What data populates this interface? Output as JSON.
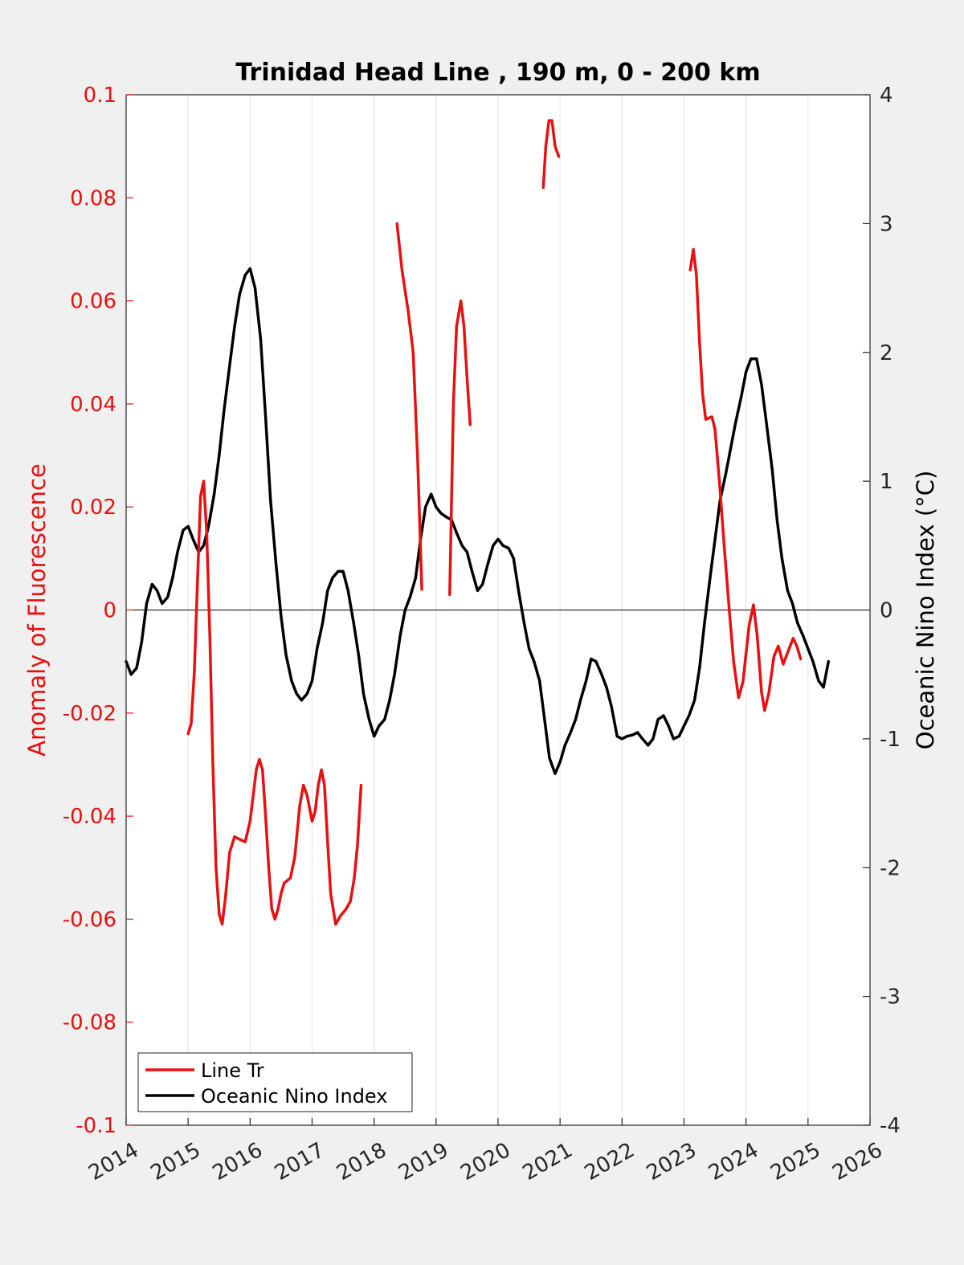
{
  "chart_data": {
    "type": "line",
    "title": "Trinidad Head Line , 190 m, 0 - 200 km",
    "xlabel": "",
    "ylabel_left": "Anomaly of Fluorescence",
    "ylabel_right": "Oceanic Nino Index (°C)",
    "xlim": [
      2014,
      2026
    ],
    "ylim_left": [
      -0.1,
      0.1
    ],
    "ylim_right": [
      -4,
      4
    ],
    "x_ticks": [
      "2014",
      "2015",
      "2016",
      "2017",
      "2018",
      "2019",
      "2020",
      "2021",
      "2022",
      "2023",
      "2024",
      "2025",
      "2026"
    ],
    "y_ticks_left": [
      "0.1",
      "0.08",
      "0.06",
      "0.04",
      "0.02",
      "0",
      "-0.02",
      "-0.04",
      "-0.06",
      "-0.08",
      "-0.1"
    ],
    "y_ticks_right": [
      "4",
      "3",
      "2",
      "1",
      "0",
      "-1",
      "-2",
      "-3",
      "-4"
    ],
    "grid": "vertical",
    "legend_position": "bottom-left",
    "colors": {
      "line_tr": "#e81010",
      "oni": "#000000",
      "left_axis": "#e81010",
      "right_axis": "#000000"
    },
    "series": [
      {
        "name": "Line Tr",
        "axis": "left",
        "segments": [
          [
            [
              2015.0,
              -0.024
            ],
            [
              2015.05,
              -0.022
            ],
            [
              2015.1,
              -0.012
            ],
            [
              2015.15,
              0.005
            ],
            [
              2015.2,
              0.022
            ],
            [
              2015.25,
              0.025
            ],
            [
              2015.3,
              0.015
            ],
            [
              2015.35,
              -0.005
            ],
            [
              2015.4,
              -0.03
            ],
            [
              2015.45,
              -0.05
            ],
            [
              2015.5,
              -0.059
            ],
            [
              2015.55,
              -0.061
            ],
            [
              2015.6,
              -0.056
            ],
            [
              2015.67,
              -0.047
            ],
            [
              2015.75,
              -0.044
            ],
            [
              2015.83,
              -0.0445
            ],
            [
              2015.92,
              -0.045
            ],
            [
              2016.0,
              -0.041
            ],
            [
              2016.05,
              -0.036
            ],
            [
              2016.1,
              -0.031
            ],
            [
              2016.15,
              -0.029
            ],
            [
              2016.2,
              -0.031
            ],
            [
              2016.25,
              -0.04
            ],
            [
              2016.3,
              -0.05
            ],
            [
              2016.35,
              -0.058
            ],
            [
              2016.4,
              -0.06
            ],
            [
              2016.45,
              -0.058
            ],
            [
              2016.5,
              -0.055
            ],
            [
              2016.55,
              -0.053
            ],
            [
              2016.65,
              -0.052
            ],
            [
              2016.72,
              -0.048
            ],
            [
              2016.8,
              -0.038
            ],
            [
              2016.86,
              -0.034
            ],
            [
              2016.92,
              -0.036
            ],
            [
              2017.0,
              -0.041
            ],
            [
              2017.05,
              -0.039
            ],
            [
              2017.1,
              -0.034
            ],
            [
              2017.15,
              -0.031
            ],
            [
              2017.2,
              -0.034
            ],
            [
              2017.25,
              -0.045
            ],
            [
              2017.3,
              -0.055
            ],
            [
              2017.38,
              -0.061
            ],
            [
              2017.45,
              -0.0595
            ],
            [
              2017.55,
              -0.058
            ],
            [
              2017.62,
              -0.0565
            ],
            [
              2017.68,
              -0.052
            ],
            [
              2017.73,
              -0.046
            ],
            [
              2017.79,
              -0.034
            ]
          ],
          [
            [
              2018.37,
              0.075
            ],
            [
              2018.45,
              0.066
            ],
            [
              2018.55,
              0.058
            ],
            [
              2018.63,
              0.05
            ],
            [
              2018.7,
              0.03
            ],
            [
              2018.75,
              0.012
            ],
            [
              2018.77,
              0.004
            ]
          ],
          [
            [
              2019.22,
              0.003
            ],
            [
              2019.28,
              0.04
            ],
            [
              2019.33,
              0.055
            ],
            [
              2019.4,
              0.06
            ],
            [
              2019.45,
              0.055
            ],
            [
              2019.5,
              0.045
            ],
            [
              2019.55,
              0.036
            ]
          ],
          [
            [
              2020.73,
              0.082
            ],
            [
              2020.77,
              0.09
            ],
            [
              2020.82,
              0.095
            ],
            [
              2020.87,
              0.095
            ],
            [
              2020.92,
              0.09
            ],
            [
              2020.98,
              0.088
            ]
          ],
          [
            [
              2023.1,
              0.066
            ],
            [
              2023.15,
              0.07
            ],
            [
              2023.2,
              0.065
            ],
            [
              2023.25,
              0.052
            ],
            [
              2023.3,
              0.042
            ],
            [
              2023.35,
              0.037
            ],
            [
              2023.45,
              0.0375
            ],
            [
              2023.5,
              0.035
            ],
            [
              2023.57,
              0.025
            ],
            [
              2023.65,
              0.012
            ],
            [
              2023.73,
              0.0
            ],
            [
              2023.8,
              -0.01
            ],
            [
              2023.88,
              -0.017
            ],
            [
              2023.95,
              -0.014
            ],
            [
              2024.05,
              -0.003
            ],
            [
              2024.12,
              0.001
            ],
            [
              2024.18,
              -0.005
            ],
            [
              2024.25,
              -0.016
            ],
            [
              2024.3,
              -0.0195
            ],
            [
              2024.37,
              -0.016
            ],
            [
              2024.45,
              -0.009
            ],
            [
              2024.52,
              -0.007
            ],
            [
              2024.6,
              -0.0105
            ],
            [
              2024.68,
              -0.008
            ],
            [
              2024.76,
              -0.0055
            ],
            [
              2024.82,
              -0.007
            ],
            [
              2024.88,
              -0.0095
            ]
          ]
        ]
      },
      {
        "name": "Oceanic Nino Index",
        "axis": "right",
        "values": [
          [
            2014.0,
            -0.4
          ],
          [
            2014.08,
            -0.5
          ],
          [
            2014.17,
            -0.45
          ],
          [
            2014.25,
            -0.25
          ],
          [
            2014.33,
            0.05
          ],
          [
            2014.42,
            0.2
          ],
          [
            2014.5,
            0.15
          ],
          [
            2014.58,
            0.05
          ],
          [
            2014.67,
            0.1
          ],
          [
            2014.75,
            0.25
          ],
          [
            2014.83,
            0.45
          ],
          [
            2014.92,
            0.62
          ],
          [
            2015.0,
            0.65
          ],
          [
            2015.08,
            0.55
          ],
          [
            2015.17,
            0.45
          ],
          [
            2015.25,
            0.5
          ],
          [
            2015.33,
            0.65
          ],
          [
            2015.42,
            0.9
          ],
          [
            2015.5,
            1.2
          ],
          [
            2015.58,
            1.55
          ],
          [
            2015.67,
            1.9
          ],
          [
            2015.75,
            2.2
          ],
          [
            2015.83,
            2.45
          ],
          [
            2015.92,
            2.6
          ],
          [
            2016.0,
            2.65
          ],
          [
            2016.08,
            2.5
          ],
          [
            2016.17,
            2.1
          ],
          [
            2016.25,
            1.5
          ],
          [
            2016.33,
            0.85
          ],
          [
            2016.42,
            0.35
          ],
          [
            2016.5,
            -0.05
          ],
          [
            2016.58,
            -0.35
          ],
          [
            2016.67,
            -0.55
          ],
          [
            2016.75,
            -0.65
          ],
          [
            2016.83,
            -0.7
          ],
          [
            2016.92,
            -0.65
          ],
          [
            2017.0,
            -0.55
          ],
          [
            2017.08,
            -0.3
          ],
          [
            2017.17,
            -0.1
          ],
          [
            2017.25,
            0.15
          ],
          [
            2017.33,
            0.25
          ],
          [
            2017.42,
            0.3
          ],
          [
            2017.5,
            0.3
          ],
          [
            2017.58,
            0.15
          ],
          [
            2017.67,
            -0.1
          ],
          [
            2017.75,
            -0.35
          ],
          [
            2017.83,
            -0.65
          ],
          [
            2017.92,
            -0.85
          ],
          [
            2018.0,
            -0.98
          ],
          [
            2018.08,
            -0.9
          ],
          [
            2018.17,
            -0.85
          ],
          [
            2018.25,
            -0.7
          ],
          [
            2018.33,
            -0.5
          ],
          [
            2018.42,
            -0.2
          ],
          [
            2018.5,
            0.0
          ],
          [
            2018.58,
            0.1
          ],
          [
            2018.67,
            0.25
          ],
          [
            2018.75,
            0.55
          ],
          [
            2018.83,
            0.8
          ],
          [
            2018.92,
            0.9
          ],
          [
            2019.0,
            0.8
          ],
          [
            2019.08,
            0.75
          ],
          [
            2019.17,
            0.72
          ],
          [
            2019.25,
            0.7
          ],
          [
            2019.33,
            0.6
          ],
          [
            2019.42,
            0.5
          ],
          [
            2019.5,
            0.45
          ],
          [
            2019.58,
            0.3
          ],
          [
            2019.67,
            0.15
          ],
          [
            2019.75,
            0.2
          ],
          [
            2019.83,
            0.35
          ],
          [
            2019.92,
            0.5
          ],
          [
            2020.0,
            0.55
          ],
          [
            2020.08,
            0.5
          ],
          [
            2020.17,
            0.48
          ],
          [
            2020.25,
            0.4
          ],
          [
            2020.33,
            0.15
          ],
          [
            2020.42,
            -0.1
          ],
          [
            2020.5,
            -0.3
          ],
          [
            2020.58,
            -0.4
          ],
          [
            2020.67,
            -0.55
          ],
          [
            2020.75,
            -0.85
          ],
          [
            2020.83,
            -1.15
          ],
          [
            2020.92,
            -1.27
          ],
          [
            2021.0,
            -1.18
          ],
          [
            2021.08,
            -1.05
          ],
          [
            2021.17,
            -0.95
          ],
          [
            2021.25,
            -0.85
          ],
          [
            2021.33,
            -0.7
          ],
          [
            2021.42,
            -0.55
          ],
          [
            2021.5,
            -0.38
          ],
          [
            2021.58,
            -0.4
          ],
          [
            2021.67,
            -0.5
          ],
          [
            2021.75,
            -0.6
          ],
          [
            2021.83,
            -0.75
          ],
          [
            2021.92,
            -0.98
          ],
          [
            2022.0,
            -1.0
          ],
          [
            2022.08,
            -0.98
          ],
          [
            2022.17,
            -0.97
          ],
          [
            2022.25,
            -0.95
          ],
          [
            2022.33,
            -1.0
          ],
          [
            2022.42,
            -1.05
          ],
          [
            2022.5,
            -1.0
          ],
          [
            2022.58,
            -0.85
          ],
          [
            2022.67,
            -0.82
          ],
          [
            2022.75,
            -0.9
          ],
          [
            2022.83,
            -1.0
          ],
          [
            2022.92,
            -0.98
          ],
          [
            2023.0,
            -0.9
          ],
          [
            2023.08,
            -0.82
          ],
          [
            2023.17,
            -0.7
          ],
          [
            2023.25,
            -0.45
          ],
          [
            2023.33,
            -0.1
          ],
          [
            2023.42,
            0.25
          ],
          [
            2023.5,
            0.55
          ],
          [
            2023.58,
            0.85
          ],
          [
            2023.67,
            1.05
          ],
          [
            2023.75,
            1.25
          ],
          [
            2023.83,
            1.45
          ],
          [
            2023.92,
            1.65
          ],
          [
            2024.0,
            1.85
          ],
          [
            2024.08,
            1.95
          ],
          [
            2024.17,
            1.95
          ],
          [
            2024.25,
            1.75
          ],
          [
            2024.33,
            1.45
          ],
          [
            2024.42,
            1.1
          ],
          [
            2024.5,
            0.7
          ],
          [
            2024.58,
            0.4
          ],
          [
            2024.67,
            0.15
          ],
          [
            2024.75,
            0.05
          ],
          [
            2024.83,
            -0.1
          ],
          [
            2024.92,
            -0.2
          ],
          [
            2025.0,
            -0.3
          ],
          [
            2025.08,
            -0.4
          ],
          [
            2025.17,
            -0.55
          ],
          [
            2025.25,
            -0.6
          ],
          [
            2025.33,
            -0.4
          ]
        ]
      }
    ]
  }
}
